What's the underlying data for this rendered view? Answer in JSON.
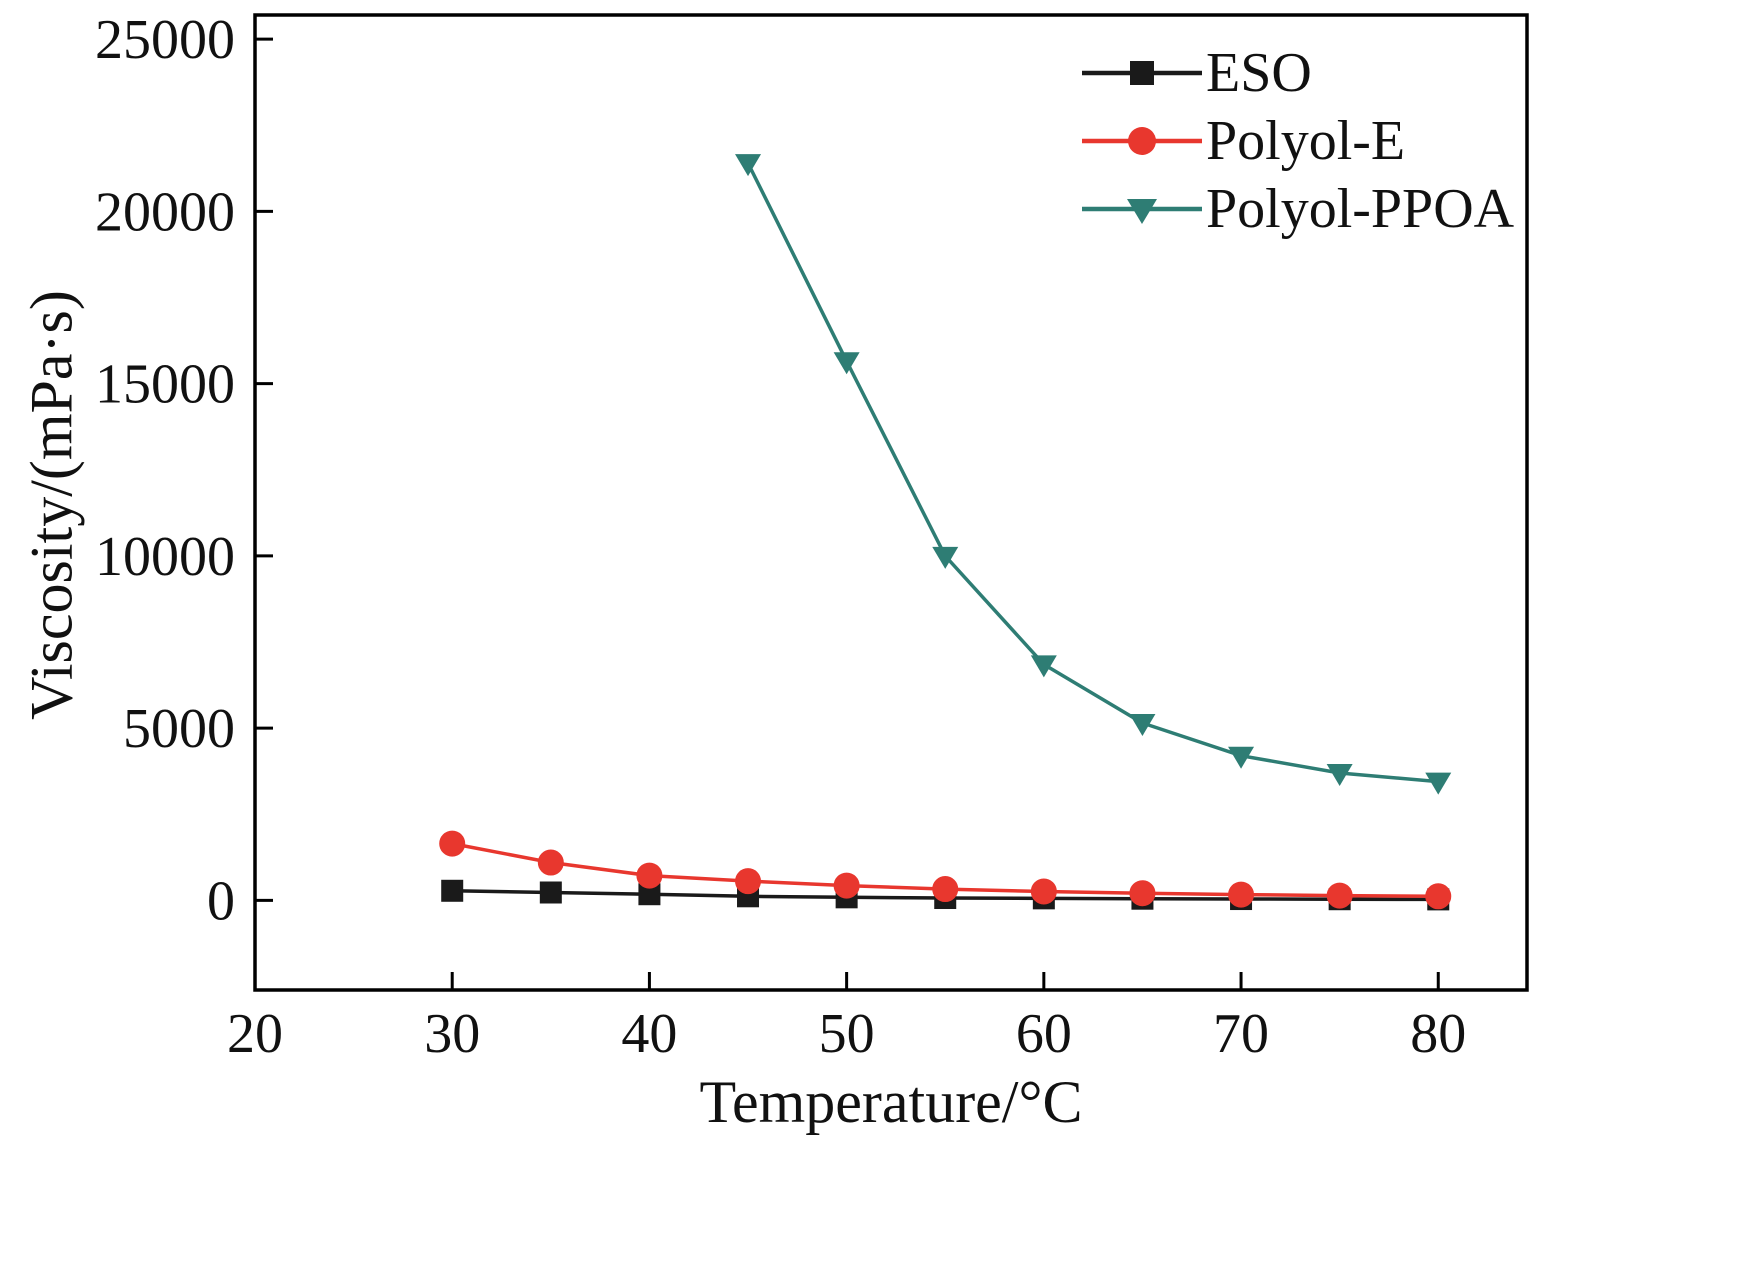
{
  "chart_data": {
    "type": "line",
    "title": "",
    "xlabel": "Temperature/°C",
    "ylabel": "Viscosity/(mPa·s)",
    "xlim": [
      20,
      84.5
    ],
    "ylim": [
      -2600,
      25700
    ],
    "xticks": [
      20,
      30,
      40,
      50,
      60,
      70,
      80
    ],
    "yticks": [
      0,
      5000,
      10000,
      15000,
      20000,
      25000
    ],
    "grid": false,
    "legend_position": "top-right",
    "series": [
      {
        "name": "ESO",
        "color": "#1a1a1a",
        "marker": "square",
        "x": [
          30,
          35,
          40,
          45,
          50,
          55,
          60,
          65,
          70,
          75,
          80
        ],
        "y": [
          280,
          230,
          180,
          120,
          90,
          70,
          60,
          50,
          40,
          35,
          30
        ]
      },
      {
        "name": "Polyol-E",
        "color": "#e8372e",
        "marker": "circle",
        "x": [
          30,
          35,
          40,
          45,
          50,
          55,
          60,
          65,
          70,
          75,
          80
        ],
        "y": [
          1650,
          1100,
          720,
          560,
          430,
          330,
          260,
          210,
          170,
          140,
          120
        ]
      },
      {
        "name": "Polyol-PPOA",
        "color": "#2e7d74",
        "marker": "triangle-down",
        "x": [
          45,
          50,
          55,
          60,
          65,
          70,
          75,
          80
        ],
        "y": [
          21400,
          15650,
          10000,
          6850,
          5150,
          4200,
          3700,
          3450
        ]
      }
    ]
  }
}
